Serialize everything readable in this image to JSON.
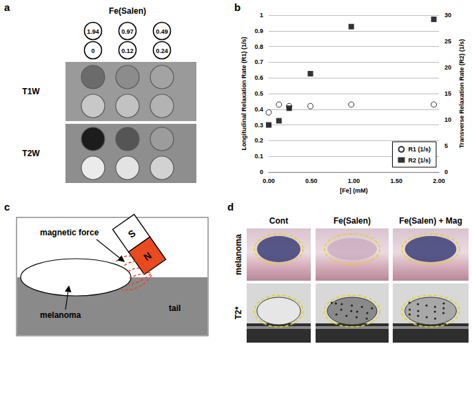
{
  "panel_labels": [
    "a",
    "b",
    "c",
    "d"
  ],
  "chart_data": {
    "type": "scatter",
    "x_label": "[Fe] (mM)",
    "y_label": "Longitudinal Relaxation Rate (R1) (1/s)",
    "y2_label": "Transverse Relaxation Rate (R2) (1/s)",
    "x": [
      0,
      0.12,
      0.24,
      0.49,
      0.97,
      1.94
    ],
    "series": [
      {
        "name": "R1 (1/s)",
        "color": "#000000",
        "marker": "open-circle",
        "values": [
          0.38,
          0.43,
          0.42,
          0.42,
          0.43,
          0.43
        ]
      },
      {
        "name": "R2 (1/s)",
        "color": "#000000",
        "marker": "square",
        "axis": "y2",
        "values": [
          9.0,
          9.8,
          12.2,
          18.8,
          27.8,
          29.2
        ]
      }
    ],
    "xlim": [
      0,
      2
    ],
    "xticks": [
      {
        "value": 0,
        "label": "0.00"
      },
      {
        "value": 0.5,
        "label": "0.50"
      },
      {
        "value": 1,
        "label": "1.00"
      },
      {
        "value": 1.5,
        "label": "1.50"
      },
      {
        "value": 2,
        "label": "2.00"
      }
    ],
    "ylim": [
      0,
      1
    ],
    "yticks": [
      0,
      0.1,
      0.2,
      0.3,
      0.4,
      0.5,
      0.6,
      0.7,
      0.8,
      0.9,
      1
    ],
    "y2lim": [
      0,
      30
    ],
    "y2ticks": [
      0,
      5,
      10,
      15,
      20,
      25,
      30
    ],
    "grid": true,
    "legend": "lower right"
  },
  "panel_a": {
    "title": "Fe(Salen)",
    "concentrations": [
      [
        1.94,
        0.97,
        0.49
      ],
      [
        0,
        0.12,
        0.24
      ]
    ],
    "rows": [
      "T1W",
      "T2W"
    ]
  },
  "panel_c": {
    "force": "magnetic force",
    "tumor": "melanoma",
    "tail": "tail",
    "magnet": [
      "S",
      "N"
    ]
  },
  "panel_d": {
    "columns": [
      "Cont",
      "Fe(Salen)",
      "Fe(Salen) + Mag"
    ],
    "rows": [
      "melanoma",
      "T2*"
    ]
  }
}
